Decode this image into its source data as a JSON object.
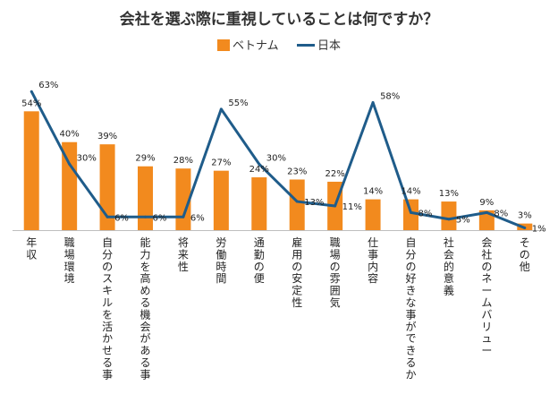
{
  "chart_data": {
    "type": "bar",
    "title": "会社を選ぶ際に重視していることは何ですか？",
    "categories": [
      "年収",
      "職場環境",
      "自分のスキルを活かせる事",
      "能力を高める機会がある事",
      "将来性",
      "労働時間",
      "通勤の便",
      "雇用の安定性",
      "職場の雰囲気",
      "仕事内容",
      "自分の好きな事ができるか",
      "社会的意義",
      "会社のネームバリュー",
      "その他"
    ],
    "series": [
      {
        "name": "ベトナム",
        "type": "bar",
        "color": "#F28A1E",
        "values": [
          54,
          40,
          39,
          29,
          28,
          27,
          24,
          23,
          22,
          14,
          14,
          13,
          9,
          3
        ],
        "labels": [
          "54%",
          "40%",
          "39%",
          "29%",
          "28%",
          "27%",
          "24%",
          "23%",
          "22%",
          "14%",
          "14%",
          "13%",
          "9%",
          "3%"
        ]
      },
      {
        "name": "日本",
        "type": "line",
        "color": "#1F5C8A",
        "values": [
          63,
          30,
          6,
          6,
          6,
          55,
          30,
          13,
          11,
          58,
          8,
          5,
          8,
          1
        ],
        "labels": [
          "63%",
          "30%",
          "6%",
          "6%",
          "6%",
          "55%",
          "30%",
          "13%",
          "11%",
          "58%",
          "8%",
          "5%",
          "8%",
          "1%"
        ]
      }
    ],
    "ylim": [
      0,
      70
    ],
    "grid": false,
    "legend": "top-center",
    "xlabel": "",
    "ylabel": ""
  }
}
